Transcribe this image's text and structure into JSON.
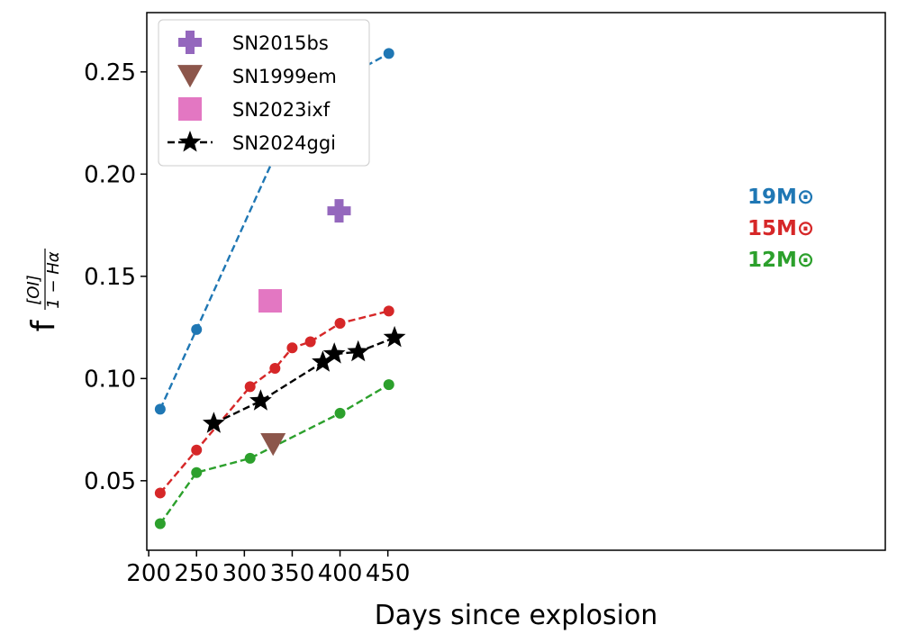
{
  "chart_data": {
    "type": "line",
    "title": "",
    "xlabel": "Days since explosion",
    "ylabel_main": "f",
    "ylabel_num": "[OI]",
    "ylabel_den": "1 − Hα",
    "xlim": [
      198,
      970
    ],
    "ylim": [
      0.016,
      0.279
    ],
    "xticks": [
      200,
      250,
      300,
      350,
      400,
      450
    ],
    "yticks": [
      0.05,
      0.1,
      0.15,
      0.2,
      0.25
    ],
    "ytick_labels": [
      "0.05",
      "0.10",
      "0.15",
      "0.20",
      "0.25"
    ],
    "grid": false,
    "legend_position": "top-left",
    "model_series": [
      {
        "label": "19M⊙",
        "color": "#1f77b4",
        "x": [
          212,
          250,
          332,
          369,
          451
        ],
        "y": [
          0.085,
          0.124,
          0.209,
          0.238,
          0.259
        ]
      },
      {
        "label": "15M⊙",
        "color": "#d62728",
        "x": [
          212,
          250,
          306,
          332,
          350,
          369,
          400,
          451
        ],
        "y": [
          0.044,
          0.065,
          0.096,
          0.105,
          0.115,
          0.118,
          0.127,
          0.133
        ]
      },
      {
        "label": "12M⊙",
        "color": "#2ca02c",
        "x": [
          212,
          250,
          306,
          400,
          451
        ],
        "y": [
          0.029,
          0.054,
          0.061,
          0.083,
          0.097
        ]
      }
    ],
    "observed": [
      {
        "name": "SN2015bs",
        "marker": "plus",
        "color": "#9467bd",
        "x": [
          399
        ],
        "y": [
          0.182
        ]
      },
      {
        "name": "SN1999em",
        "marker": "triangle-down",
        "color": "#8c564b",
        "x": [
          330
        ],
        "y": [
          0.068
        ]
      },
      {
        "name": "SN2023ixf",
        "marker": "square",
        "color": "#e377c2",
        "x": [
          327
        ],
        "y": [
          0.138
        ]
      },
      {
        "name": "SN2024ggi",
        "marker": "star",
        "color": "#000000",
        "x": [
          268,
          317,
          382,
          394,
          419,
          457
        ],
        "y": [
          0.078,
          0.089,
          0.108,
          0.112,
          0.113,
          0.12
        ]
      }
    ]
  }
}
